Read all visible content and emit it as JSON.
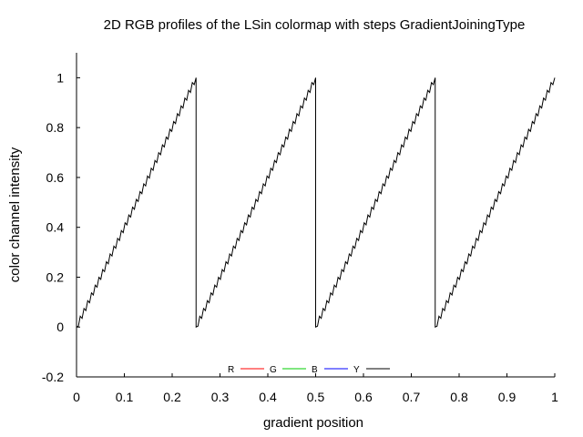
{
  "chart_data": {
    "type": "line",
    "title": "2D RGB profiles of the LSin colormap with steps GradientJoiningType",
    "xlabel": "gradient position",
    "ylabel": "color channel intensity",
    "xlim": [
      0,
      1
    ],
    "ylim": [
      -0.2,
      1.1
    ],
    "x_ticks": [
      "0",
      "0.1",
      "0.2",
      "0.3",
      "0.4",
      "0.5",
      "0.6",
      "0.7",
      "0.8",
      "0.9",
      "1"
    ],
    "y_ticks": [
      "-0.2",
      "0",
      "0.2",
      "0.4",
      "0.6",
      "0.8",
      "1"
    ],
    "grid": false,
    "legend_position": "bottom-center",
    "pattern": {
      "description_values": "sawtooth ramps from 0 to 1 repeating over each quarter of the gradient",
      "segments": [
        {
          "x_start": 0.0,
          "x_end": 0.25,
          "y_start": 0,
          "y_end": 1
        },
        {
          "x_start": 0.25,
          "x_end": 0.5,
          "y_start": 0,
          "y_end": 1
        },
        {
          "x_start": 0.5,
          "x_end": 0.75,
          "y_start": 0,
          "y_end": 1
        },
        {
          "x_start": 0.75,
          "x_end": 1.0,
          "y_start": 0,
          "y_end": 1
        }
      ]
    },
    "series": [
      {
        "name": "R",
        "color": "#ff0000"
      },
      {
        "name": "G",
        "color": "#00cc00"
      },
      {
        "name": "B",
        "color": "#0000ff"
      },
      {
        "name": "Y",
        "color": "#000000"
      }
    ]
  }
}
